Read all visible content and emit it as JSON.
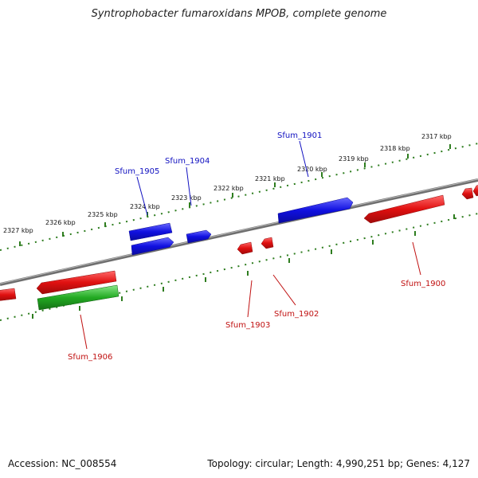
{
  "title": "Syntrophobacter fumaroxidans MPOB, complete genome",
  "accession": "Accession: NC_008554",
  "summary": "Topology: circular; Length: 4,990,251 bp; Genes: 4,127",
  "colors": {
    "backbone": "#7a7a7a",
    "tick": "#2e7d1f",
    "forward_gene": "#1010e0",
    "reverse_gene": "#e01010",
    "rna_gene": "#22aa22",
    "forward_label": "#1010c0",
    "reverse_label": "#c01010"
  },
  "ticks": [
    {
      "label": "2317 kbp"
    },
    {
      "label": "2318 kbp"
    },
    {
      "label": "2319 kbp"
    },
    {
      "label": "2320 kbp"
    },
    {
      "label": "2321 kbp"
    },
    {
      "label": "2322 kbp"
    },
    {
      "label": "2323 kbp"
    },
    {
      "label": "2324 kbp"
    },
    {
      "label": "2325 kbp"
    },
    {
      "label": "2326 kbp"
    },
    {
      "label": "2327 kbp"
    }
  ],
  "genes": [
    {
      "name": "Sfum_1901",
      "strand": "forward",
      "type": "CDS"
    },
    {
      "name": "Sfum_1904",
      "strand": "forward",
      "type": "CDS"
    },
    {
      "name": "Sfum_1905",
      "strand": "forward",
      "type": "CDS"
    },
    {
      "name": "Sfum_1900",
      "strand": "reverse",
      "type": "CDS"
    },
    {
      "name": "Sfum_1902",
      "strand": "reverse",
      "type": "CDS"
    },
    {
      "name": "Sfum_1903",
      "strand": "reverse",
      "type": "CDS"
    },
    {
      "name": "Sfum_1906",
      "strand": "reverse",
      "type": "CDS"
    }
  ]
}
